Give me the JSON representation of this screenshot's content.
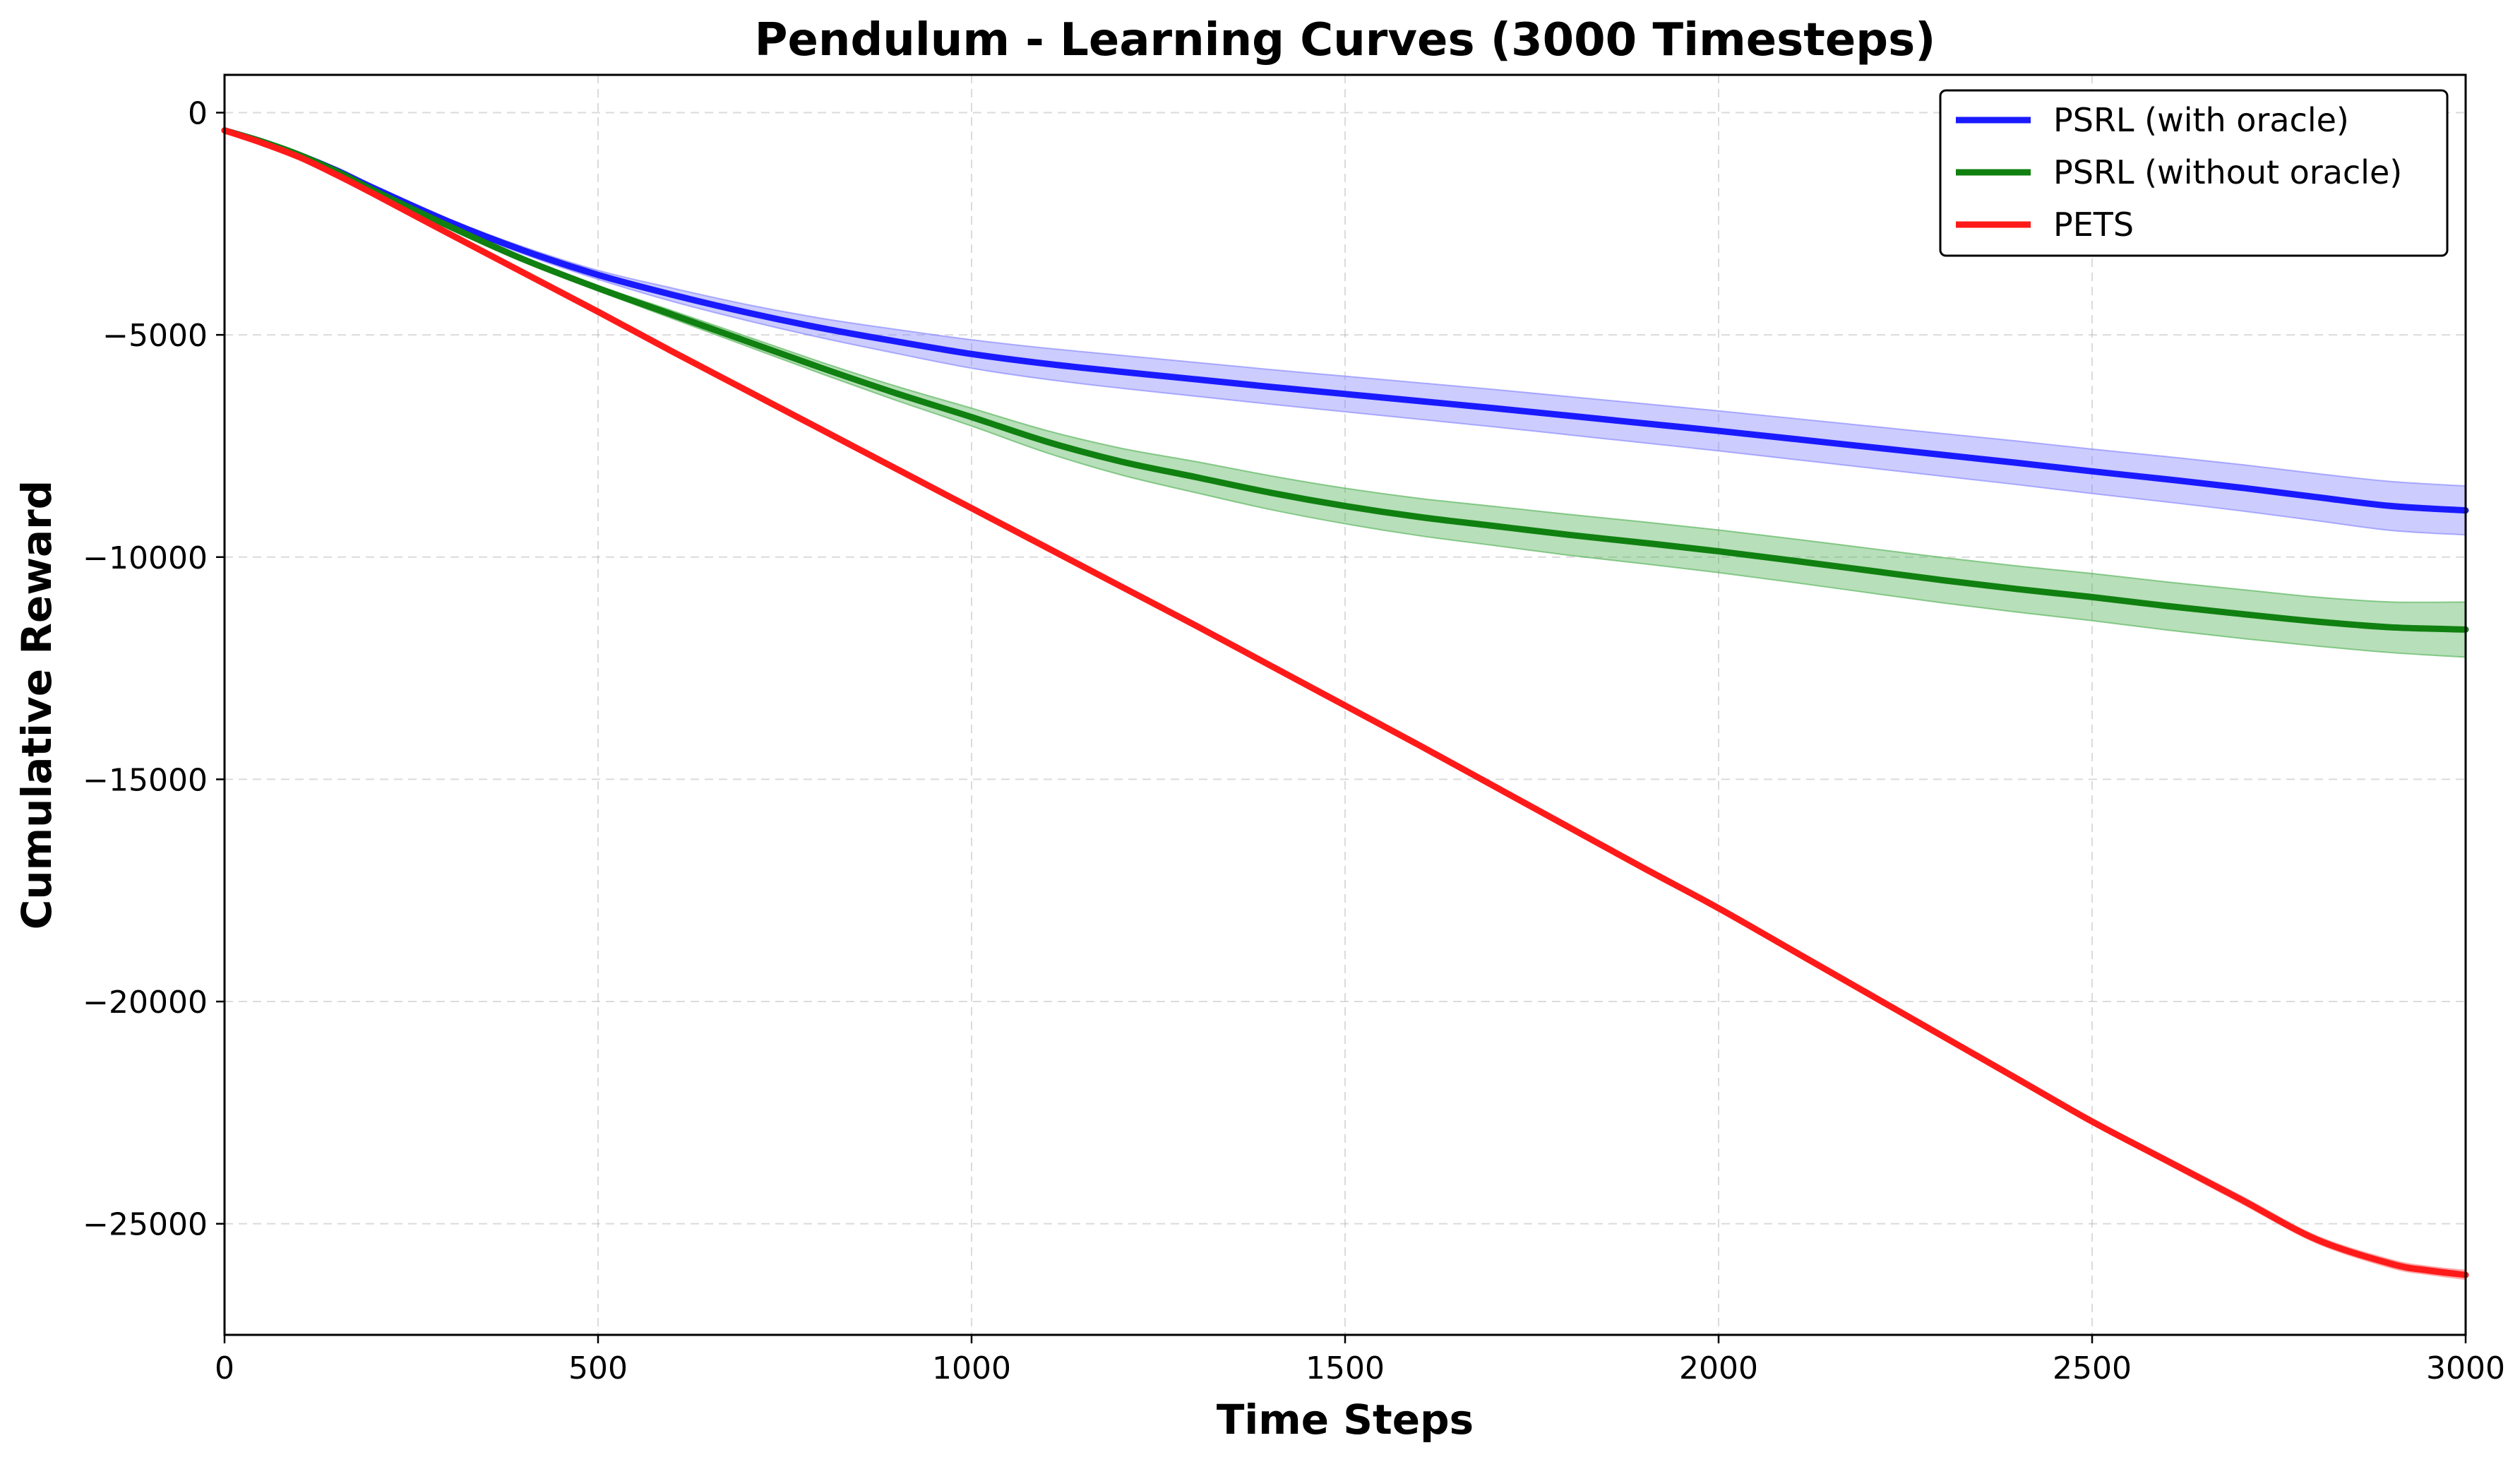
{
  "chart_data": {
    "type": "line",
    "title": "Pendulum - Learning Curves (3000 Timesteps)",
    "xlabel": "Time Steps",
    "ylabel": "Cumulative Reward",
    "xlim": [
      0,
      3000
    ],
    "ylim": [
      -27500,
      850
    ],
    "xticks": [
      0,
      500,
      1000,
      1500,
      2000,
      2500,
      3000
    ],
    "xtick_labels": [
      "0",
      "500",
      "1000",
      "1500",
      "2000",
      "2500",
      "3000"
    ],
    "yticks": [
      0,
      -5000,
      -10000,
      -15000,
      -20000,
      -25000
    ],
    "ytick_labels": [
      "0",
      "−5000",
      "−10000",
      "−15000",
      "−20000",
      "−25000"
    ],
    "grid": true,
    "legend_position": "top-right",
    "series": [
      {
        "name": "PSRL (with oracle)",
        "color": "#1a1aff",
        "band_color": "#7f7fff",
        "x": [
          0,
          50,
          100,
          150,
          200,
          300,
          400,
          500,
          600,
          700,
          800,
          900,
          1000,
          1100,
          1200,
          1300,
          1400,
          1500,
          1600,
          1700,
          1800,
          1900,
          2000,
          2100,
          2200,
          2300,
          2400,
          2500,
          2600,
          2700,
          2800,
          2900,
          3000
        ],
        "y": [
          -400,
          -650,
          -950,
          -1300,
          -1700,
          -2450,
          -3100,
          -3650,
          -4100,
          -4500,
          -4850,
          -5150,
          -5430,
          -5650,
          -5830,
          -6000,
          -6170,
          -6330,
          -6490,
          -6650,
          -6820,
          -6990,
          -7160,
          -7340,
          -7520,
          -7700,
          -7880,
          -8070,
          -8250,
          -8440,
          -8650,
          -8850,
          -8950
        ],
        "lower": [
          -400,
          -650,
          -950,
          -1300,
          -1720,
          -2500,
          -3180,
          -3750,
          -4250,
          -4680,
          -5070,
          -5420,
          -5750,
          -6000,
          -6200,
          -6380,
          -6560,
          -6730,
          -6900,
          -7070,
          -7250,
          -7430,
          -7610,
          -7800,
          -7990,
          -8180,
          -8370,
          -8570,
          -8760,
          -8960,
          -9180,
          -9400,
          -9500
        ],
        "upper": [
          -400,
          -650,
          -950,
          -1290,
          -1680,
          -2400,
          -3020,
          -3550,
          -3950,
          -4320,
          -4630,
          -4880,
          -5110,
          -5300,
          -5460,
          -5620,
          -5780,
          -5930,
          -6080,
          -6230,
          -6390,
          -6550,
          -6710,
          -6880,
          -7050,
          -7220,
          -7390,
          -7570,
          -7740,
          -7920,
          -8120,
          -8300,
          -8400
        ]
      },
      {
        "name": "PSRL (without oracle)",
        "color": "#108010",
        "band_color": "#4caf50",
        "x": [
          0,
          50,
          100,
          150,
          200,
          300,
          400,
          500,
          600,
          700,
          800,
          900,
          1000,
          1100,
          1200,
          1300,
          1400,
          1500,
          1600,
          1700,
          1800,
          1900,
          2000,
          2100,
          2200,
          2300,
          2400,
          2500,
          2600,
          2700,
          2800,
          2900,
          3000
        ],
        "y": [
          -400,
          -650,
          -950,
          -1320,
          -1750,
          -2550,
          -3300,
          -3950,
          -4550,
          -5150,
          -5750,
          -6320,
          -6850,
          -7400,
          -7850,
          -8200,
          -8550,
          -8850,
          -9100,
          -9300,
          -9500,
          -9680,
          -9870,
          -10080,
          -10300,
          -10520,
          -10720,
          -10900,
          -11100,
          -11280,
          -11450,
          -11580,
          -11630
        ],
        "lower": [
          -400,
          -650,
          -950,
          -1330,
          -1770,
          -2580,
          -3350,
          -4010,
          -4640,
          -5260,
          -5880,
          -6480,
          -7050,
          -7650,
          -8150,
          -8550,
          -8930,
          -9250,
          -9520,
          -9740,
          -9960,
          -10150,
          -10350,
          -10570,
          -10800,
          -11030,
          -11240,
          -11430,
          -11640,
          -11830,
          -12000,
          -12150,
          -12250
        ],
        "upper": [
          -400,
          -650,
          -950,
          -1310,
          -1730,
          -2520,
          -3250,
          -3890,
          -4460,
          -5040,
          -5620,
          -6160,
          -6650,
          -7150,
          -7550,
          -7850,
          -8170,
          -8450,
          -8680,
          -8860,
          -9040,
          -9210,
          -9390,
          -9590,
          -9800,
          -10010,
          -10200,
          -10370,
          -10560,
          -10730,
          -10900,
          -11010,
          -11010
        ]
      },
      {
        "name": "PETS",
        "color": "#ff1a1a",
        "band_color": "#ff7f7f",
        "x": [
          0,
          50,
          100,
          150,
          200,
          300,
          400,
          500,
          600,
          700,
          800,
          900,
          1000,
          1100,
          1200,
          1300,
          1400,
          1500,
          1600,
          1700,
          1800,
          1900,
          2000,
          2100,
          2200,
          2300,
          2400,
          2500,
          2600,
          2700,
          2800,
          2900,
          2950,
          3000
        ],
        "y": [
          -400,
          -680,
          -1000,
          -1400,
          -1830,
          -2720,
          -3600,
          -4480,
          -5380,
          -6260,
          -7140,
          -8020,
          -8900,
          -9780,
          -10660,
          -11540,
          -12440,
          -13340,
          -14240,
          -15160,
          -16080,
          -17000,
          -17900,
          -18860,
          -19820,
          -20780,
          -21740,
          -22700,
          -23580,
          -24460,
          -25350,
          -25900,
          -26050,
          -26150
        ],
        "lower": [
          -400,
          -680,
          -1000,
          -1400,
          -1830,
          -2720,
          -3600,
          -4480,
          -5380,
          -6260,
          -7140,
          -8020,
          -8900,
          -9780,
          -10660,
          -11540,
          -12440,
          -13340,
          -14240,
          -15160,
          -16080,
          -17000,
          -17910,
          -18880,
          -19850,
          -20820,
          -21790,
          -22760,
          -23650,
          -24540,
          -25430,
          -25990,
          -26140,
          -26250
        ],
        "upper": [
          -400,
          -680,
          -1000,
          -1400,
          -1830,
          -2720,
          -3600,
          -4480,
          -5380,
          -6260,
          -7140,
          -8020,
          -8900,
          -9780,
          -10660,
          -11540,
          -12440,
          -13340,
          -14240,
          -15160,
          -16080,
          -17000,
          -17890,
          -18840,
          -19790,
          -20740,
          -21690,
          -22640,
          -23510,
          -24380,
          -25270,
          -25810,
          -25960,
          -26050
        ]
      }
    ]
  }
}
